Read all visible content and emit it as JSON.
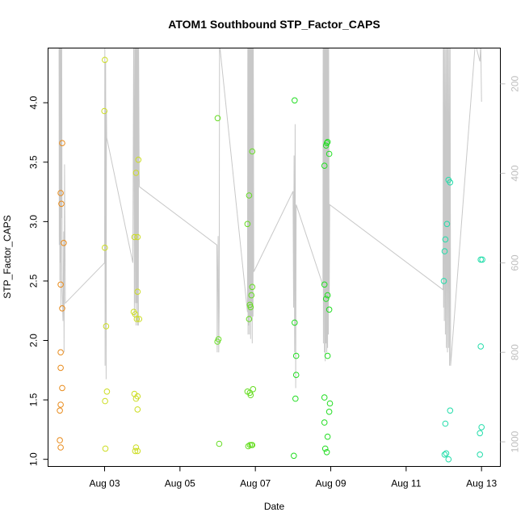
{
  "chart_data": {
    "type": "scatter",
    "title": "ATOM1 Southbound STP_Factor_CAPS",
    "xlabel": "Date",
    "ylabel": "STP_Factor_CAPS",
    "xlim": [
      "2016-08-01T12:00",
      "2016-08-13T12:00"
    ],
    "ylim": [
      0.94,
      4.46
    ],
    "x_tick_labels": [
      "Aug 03",
      "Aug 05",
      "Aug 07",
      "Aug 09",
      "Aug 11",
      "Aug 13"
    ],
    "y_ticks": [
      1.0,
      1.5,
      2.0,
      2.5,
      3.0,
      3.5,
      4.0
    ],
    "y_tick_labels": [
      "1.0",
      "1.5",
      "2.0",
      "2.5",
      "3.0",
      "3.5",
      "4.0"
    ],
    "right_axis": {
      "ticks": [
        200,
        400,
        600,
        800,
        1000
      ],
      "tick_labels": [
        "200",
        "400",
        "600",
        "800",
        "1000"
      ],
      "color": "#bebebe",
      "ylim": [
        1055,
        120
      ]
    },
    "grid": false,
    "legend": "none",
    "series": [
      {
        "color": "#e88a1a",
        "points": [
          [
            "2016-08-01T21:00",
            3.66
          ],
          [
            "2016-08-01T20:00",
            3.24
          ],
          [
            "2016-08-01T20:30",
            3.15
          ],
          [
            "2016-08-01T22:00",
            2.82
          ],
          [
            "2016-08-01T20:00",
            2.47
          ],
          [
            "2016-08-01T21:00",
            2.27
          ],
          [
            "2016-08-01T20:00",
            1.9
          ],
          [
            "2016-08-01T20:00",
            1.77
          ],
          [
            "2016-08-01T21:00",
            1.6
          ],
          [
            "2016-08-01T20:00",
            1.46
          ],
          [
            "2016-08-01T19:30",
            1.41
          ],
          [
            "2016-08-01T19:30",
            1.16
          ],
          [
            "2016-08-01T20:00",
            1.1
          ]
        ]
      },
      {
        "color": "#ccdd22",
        "points": [
          [
            "2016-08-03T00:10",
            4.36
          ],
          [
            "2016-08-02T23:50",
            3.93
          ],
          [
            "2016-08-03T00:10",
            2.78
          ],
          [
            "2016-08-03T01:00",
            2.12
          ],
          [
            "2016-08-03T01:30",
            1.57
          ],
          [
            "2016-08-03T00:20",
            1.49
          ],
          [
            "2016-08-03T00:30",
            1.09
          ],
          [
            "2016-08-03T21:30",
            3.52
          ],
          [
            "2016-08-03T20:00",
            3.41
          ],
          [
            "2016-08-03T19:00",
            2.87
          ],
          [
            "2016-08-03T21:00",
            2.87
          ],
          [
            "2016-08-03T21:00",
            2.41
          ],
          [
            "2016-08-03T18:30",
            2.24
          ],
          [
            "2016-08-03T19:30",
            2.22
          ],
          [
            "2016-08-03T20:30",
            2.18
          ],
          [
            "2016-08-03T22:00",
            2.18
          ],
          [
            "2016-08-03T19:00",
            1.55
          ],
          [
            "2016-08-03T20:00",
            1.51
          ],
          [
            "2016-08-03T21:00",
            1.53
          ],
          [
            "2016-08-03T21:00",
            1.42
          ],
          [
            "2016-08-03T20:00",
            1.1
          ],
          [
            "2016-08-03T19:30",
            1.07
          ],
          [
            "2016-08-03T21:00",
            1.07
          ]
        ]
      },
      {
        "color": "#66dd22",
        "points": [
          [
            "2016-08-06T00:00",
            3.87
          ],
          [
            "2016-08-06T00:30",
            2.01
          ],
          [
            "2016-08-05T23:50",
            1.99
          ],
          [
            "2016-08-06T01:00",
            1.13
          ],
          [
            "2016-08-06T19:00",
            2.98
          ],
          [
            "2016-08-06T20:00",
            3.22
          ],
          [
            "2016-08-06T22:00",
            3.59
          ],
          [
            "2016-08-06T22:00",
            2.45
          ],
          [
            "2016-08-06T21:30",
            2.38
          ],
          [
            "2016-08-06T20:30",
            2.3
          ],
          [
            "2016-08-06T21:00",
            2.28
          ],
          [
            "2016-08-06T20:00",
            2.18
          ],
          [
            "2016-08-06T19:00",
            1.57
          ],
          [
            "2016-08-06T20:30",
            1.56
          ],
          [
            "2016-08-06T22:30",
            1.59
          ],
          [
            "2016-08-06T21:00",
            1.54
          ],
          [
            "2016-08-06T19:30",
            1.11
          ],
          [
            "2016-08-06T20:30",
            1.12
          ],
          [
            "2016-08-06T21:30",
            1.12
          ],
          [
            "2016-08-06T22:00",
            1.12
          ]
        ]
      },
      {
        "color": "#22dd22",
        "points": [
          [
            "2016-08-08T01:00",
            4.02
          ],
          [
            "2016-08-08T01:00",
            2.15
          ],
          [
            "2016-08-08T02:00",
            1.87
          ],
          [
            "2016-08-08T02:00",
            1.71
          ],
          [
            "2016-08-08T01:30",
            1.51
          ],
          [
            "2016-08-08T00:30",
            1.03
          ],
          [
            "2016-08-08T20:00",
            3.47
          ],
          [
            "2016-08-08T21:00",
            3.64
          ],
          [
            "2016-08-08T21:30",
            3.66
          ],
          [
            "2016-08-08T22:00",
            3.67
          ],
          [
            "2016-08-08T23:00",
            3.57
          ],
          [
            "2016-08-08T20:00",
            2.47
          ],
          [
            "2016-08-08T21:00",
            2.35
          ],
          [
            "2016-08-08T22:00",
            2.38
          ],
          [
            "2016-08-08T23:00",
            2.26
          ],
          [
            "2016-08-08T22:00",
            1.87
          ],
          [
            "2016-08-08T20:00",
            1.52
          ],
          [
            "2016-08-08T23:30",
            1.47
          ],
          [
            "2016-08-08T23:00",
            1.4
          ],
          [
            "2016-08-08T20:00",
            1.31
          ],
          [
            "2016-08-08T22:00",
            1.19
          ],
          [
            "2016-08-08T20:30",
            1.09
          ],
          [
            "2016-08-08T21:30",
            1.06
          ]
        ]
      },
      {
        "color": "#22ddaa",
        "points": [
          [
            "2016-08-12T03:00",
            3.35
          ],
          [
            "2016-08-12T04:00",
            3.33
          ],
          [
            "2016-08-12T02:00",
            2.98
          ],
          [
            "2016-08-12T01:00",
            2.85
          ],
          [
            "2016-08-12T00:30",
            2.75
          ],
          [
            "2016-08-12T00:00",
            2.5
          ],
          [
            "2016-08-12T04:00",
            1.41
          ],
          [
            "2016-08-12T01:00",
            1.3
          ],
          [
            "2016-08-12T01:30",
            1.05
          ],
          [
            "2016-08-12T00:30",
            1.04
          ],
          [
            "2016-08-12T03:00",
            1.0
          ],
          [
            "2016-08-12T23:30",
            2.68
          ],
          [
            "2016-08-13T00:30",
            2.68
          ],
          [
            "2016-08-12T23:30",
            1.95
          ],
          [
            "2016-08-13T00:00",
            1.27
          ],
          [
            "2016-08-12T23:00",
            1.22
          ],
          [
            "2016-08-12T23:00",
            1.04
          ]
        ]
      }
    ],
    "line_series": {
      "color": "#c8c8c8",
      "axis": "right",
      "points": [
        [
          "2016-08-01T19:00",
          110
        ],
        [
          "2016-08-01T19:10",
          560
        ],
        [
          "2016-08-01T19:20",
          120
        ],
        [
          "2016-08-01T19:30",
          640
        ],
        [
          "2016-08-01T19:40",
          110
        ],
        [
          "2016-08-01T19:50",
          600
        ],
        [
          "2016-08-01T20:00",
          110
        ],
        [
          "2016-08-01T20:10",
          700
        ],
        [
          "2016-08-01T20:20",
          110
        ],
        [
          "2016-08-01T20:30",
          500
        ],
        [
          "2016-08-01T20:40",
          110
        ],
        [
          "2016-08-01T21:00",
          660
        ],
        [
          "2016-08-01T21:30",
          730
        ],
        [
          "2016-08-01T22:00",
          530
        ],
        [
          "2016-08-01T22:10",
          800
        ],
        [
          "2016-08-01T22:30",
          380
        ],
        [
          "2016-08-01T23:00",
          690
        ],
        [
          "2016-08-03T00:00",
          600
        ],
        [
          "2016-08-03T00:10",
          110
        ],
        [
          "2016-08-03T00:20",
          830
        ],
        [
          "2016-08-03T00:40",
          150
        ],
        [
          "2016-08-03T01:00",
          860
        ],
        [
          "2016-08-03T01:10",
          260
        ],
        [
          "2016-08-03T01:20",
          320
        ],
        [
          "2016-08-03T18:00",
          600
        ],
        [
          "2016-08-03T18:30",
          110
        ],
        [
          "2016-08-03T19:00",
          720
        ],
        [
          "2016-08-03T19:10",
          110
        ],
        [
          "2016-08-03T19:20",
          690
        ],
        [
          "2016-08-03T19:40",
          110
        ],
        [
          "2016-08-03T20:00",
          740
        ],
        [
          "2016-08-03T20:10",
          110
        ],
        [
          "2016-08-03T20:30",
          690
        ],
        [
          "2016-08-03T20:40",
          110
        ],
        [
          "2016-08-03T21:00",
          740
        ],
        [
          "2016-08-03T21:10",
          110
        ],
        [
          "2016-08-03T21:30",
          740
        ],
        [
          "2016-08-03T21:40",
          110
        ],
        [
          "2016-08-03T22:00",
          400
        ],
        [
          "2016-08-03T22:10",
          430
        ],
        [
          "2016-08-05T23:30",
          560
        ],
        [
          "2016-08-05T23:40",
          800
        ],
        [
          "2016-08-06T00:00",
          630
        ],
        [
          "2016-08-06T00:20",
          540
        ],
        [
          "2016-08-06T00:40",
          800
        ],
        [
          "2016-08-06T01:00",
          700
        ],
        [
          "2016-08-06T01:10",
          110
        ],
        [
          "2016-08-06T19:00",
          710
        ],
        [
          "2016-08-06T19:10",
          110
        ],
        [
          "2016-08-06T19:20",
          760
        ],
        [
          "2016-08-06T19:30",
          110
        ],
        [
          "2016-08-06T19:40",
          740
        ],
        [
          "2016-08-06T20:00",
          110
        ],
        [
          "2016-08-06T20:10",
          760
        ],
        [
          "2016-08-06T20:20",
          110
        ],
        [
          "2016-08-06T20:40",
          720
        ],
        [
          "2016-08-06T20:50",
          110
        ],
        [
          "2016-08-06T21:00",
          770
        ],
        [
          "2016-08-06T21:10",
          110
        ],
        [
          "2016-08-06T21:30",
          720
        ],
        [
          "2016-08-06T21:40",
          110
        ],
        [
          "2016-08-06T22:00",
          780
        ],
        [
          "2016-08-06T22:10",
          110
        ],
        [
          "2016-08-06T22:30",
          720
        ],
        [
          "2016-08-06T22:40",
          110
        ],
        [
          "2016-08-06T23:00",
          620
        ],
        [
          "2016-08-08T00:00",
          440
        ],
        [
          "2016-08-08T00:20",
          700
        ],
        [
          "2016-08-08T00:40",
          360
        ],
        [
          "2016-08-08T01:00",
          800
        ],
        [
          "2016-08-08T01:20",
          290
        ],
        [
          "2016-08-08T01:40",
          880
        ],
        [
          "2016-08-08T02:00",
          470
        ],
        [
          "2016-08-08T19:00",
          650
        ],
        [
          "2016-08-08T19:10",
          110
        ],
        [
          "2016-08-08T19:20",
          780
        ],
        [
          "2016-08-08T19:40",
          110
        ],
        [
          "2016-08-08T20:00",
          800
        ],
        [
          "2016-08-08T20:10",
          110
        ],
        [
          "2016-08-08T20:30",
          820
        ],
        [
          "2016-08-08T20:40",
          110
        ],
        [
          "2016-08-08T21:00",
          780
        ],
        [
          "2016-08-08T21:10",
          110
        ],
        [
          "2016-08-08T21:30",
          800
        ],
        [
          "2016-08-08T21:40",
          110
        ],
        [
          "2016-08-08T22:00",
          790
        ],
        [
          "2016-08-08T22:10",
          110
        ],
        [
          "2016-08-08T22:30",
          760
        ],
        [
          "2016-08-08T22:40",
          110
        ],
        [
          "2016-08-08T23:00",
          680
        ],
        [
          "2016-08-08T23:20",
          470
        ],
        [
          "2016-08-11T23:30",
          660
        ],
        [
          "2016-08-11T23:40",
          110
        ],
        [
          "2016-08-11T23:50",
          700
        ],
        [
          "2016-08-12T00:00",
          110
        ],
        [
          "2016-08-12T00:20",
          730
        ],
        [
          "2016-08-12T00:40",
          110
        ],
        [
          "2016-08-12T01:00",
          760
        ],
        [
          "2016-08-12T01:20",
          110
        ],
        [
          "2016-08-12T01:40",
          790
        ],
        [
          "2016-08-12T02:00",
          110
        ],
        [
          "2016-08-12T02:20",
          800
        ],
        [
          "2016-08-12T02:40",
          110
        ],
        [
          "2016-08-12T03:00",
          790
        ],
        [
          "2016-08-12T03:20",
          110
        ],
        [
          "2016-08-12T03:40",
          830
        ],
        [
          "2016-08-12T04:00",
          110
        ],
        [
          "2016-08-12T04:20",
          830
        ],
        [
          "2016-08-12T20:00",
          110
        ],
        [
          "2016-08-12T23:00",
          150
        ],
        [
          "2016-08-12T23:30",
          110
        ],
        [
          "2016-08-13T00:00",
          240
        ]
      ]
    }
  }
}
